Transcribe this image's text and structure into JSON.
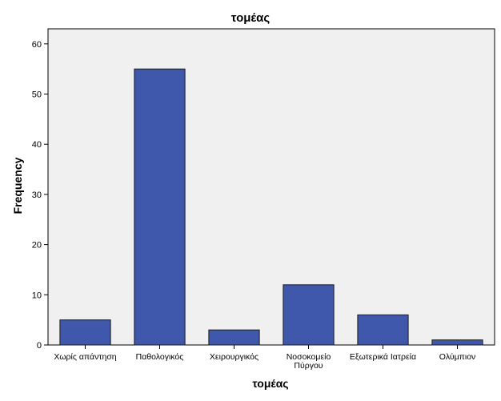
{
  "chart_data": {
    "type": "bar",
    "title": "τομέας",
    "xlabel": "τομέας",
    "ylabel": "Frequency",
    "categories": [
      [
        "Χωρίς απάντηση"
      ],
      [
        "Παθολογικός"
      ],
      [
        "Χειρουργικός"
      ],
      [
        "Νοσοκομείο",
        "Πύργου"
      ],
      [
        "Εξωτερικά Ιατρεία"
      ],
      [
        "Ολύμπιον"
      ]
    ],
    "values": [
      5,
      55,
      3,
      12,
      6,
      1
    ],
    "ylim": [
      0,
      63
    ],
    "yticks": [
      0,
      10,
      20,
      30,
      40,
      50,
      60
    ],
    "grid": false,
    "colors": {
      "bar_fill": "#3f58ac",
      "bar_stroke": "#1a1a1a",
      "plot_bg": "#f0f0f0",
      "axis": "#000000"
    }
  }
}
